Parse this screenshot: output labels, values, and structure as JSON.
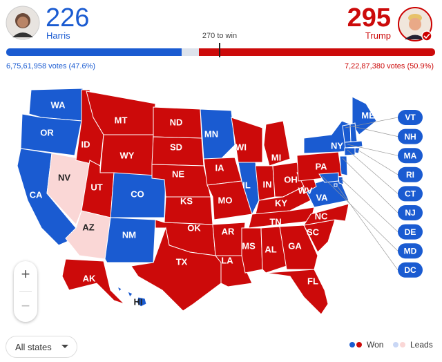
{
  "candidates": [
    {
      "name": "Harris",
      "electoral_votes": 226,
      "votes": "6,75,61,958 votes (47.6%)"
    },
    {
      "name": "Trump",
      "electoral_votes": 295,
      "votes": "7,22,87,380 votes (50.9%)"
    }
  ],
  "threshold": "270 to win",
  "states": [
    {
      "label": "WA",
      "party": "Harris",
      "status": "Won"
    },
    {
      "label": "OR",
      "party": "Harris",
      "status": "Won"
    },
    {
      "label": "CA",
      "party": "Harris",
      "status": "Won"
    },
    {
      "label": "NV",
      "party": "Trump",
      "status": "Leads"
    },
    {
      "label": "ID",
      "party": "Trump",
      "status": "Won"
    },
    {
      "label": "MT",
      "party": "Trump",
      "status": "Won"
    },
    {
      "label": "WY",
      "party": "Trump",
      "status": "Won"
    },
    {
      "label": "UT",
      "party": "Trump",
      "status": "Won"
    },
    {
      "label": "AZ",
      "party": "Trump",
      "status": "Leads"
    },
    {
      "label": "CO",
      "party": "Harris",
      "status": "Won"
    },
    {
      "label": "NM",
      "party": "Harris",
      "status": "Won"
    },
    {
      "label": "ND",
      "party": "Trump",
      "status": "Won"
    },
    {
      "label": "SD",
      "party": "Trump",
      "status": "Won"
    },
    {
      "label": "NE",
      "party": "Trump",
      "status": "Won"
    },
    {
      "label": "KS",
      "party": "Trump",
      "status": "Won"
    },
    {
      "label": "OK",
      "party": "Trump",
      "status": "Won"
    },
    {
      "label": "TX",
      "party": "Trump",
      "status": "Won"
    },
    {
      "label": "MN",
      "party": "Harris",
      "status": "Won"
    },
    {
      "label": "IA",
      "party": "Trump",
      "status": "Won"
    },
    {
      "label": "MO",
      "party": "Trump",
      "status": "Won"
    },
    {
      "label": "AR",
      "party": "Trump",
      "status": "Won"
    },
    {
      "label": "LA",
      "party": "Trump",
      "status": "Won"
    },
    {
      "label": "WI",
      "party": "Trump",
      "status": "Won"
    },
    {
      "label": "IL",
      "party": "Harris",
      "status": "Won"
    },
    {
      "label": "MI",
      "party": "Trump",
      "status": "Won"
    },
    {
      "label": "IN",
      "party": "Trump",
      "status": "Won"
    },
    {
      "label": "OH",
      "party": "Trump",
      "status": "Won"
    },
    {
      "label": "KY",
      "party": "Trump",
      "status": "Won"
    },
    {
      "label": "TN",
      "party": "Trump",
      "status": "Won"
    },
    {
      "label": "MS",
      "party": "Trump",
      "status": "Won"
    },
    {
      "label": "AL",
      "party": "Trump",
      "status": "Won"
    },
    {
      "label": "GA",
      "party": "Trump",
      "status": "Won"
    },
    {
      "label": "FL",
      "party": "Trump",
      "status": "Won"
    },
    {
      "label": "SC",
      "party": "Trump",
      "status": "Won"
    },
    {
      "label": "NC",
      "party": "Trump",
      "status": "Won"
    },
    {
      "label": "VA",
      "party": "Harris",
      "status": "Won"
    },
    {
      "label": "WV",
      "party": "Trump",
      "status": "Won"
    },
    {
      "label": "PA",
      "party": "Trump",
      "status": "Won"
    },
    {
      "label": "NY",
      "party": "Harris",
      "status": "Won"
    },
    {
      "label": "ME",
      "party": "Harris",
      "status": "Won"
    },
    {
      "label": "AK",
      "party": "Trump",
      "status": "Won"
    },
    {
      "label": "HI",
      "party": "Harris",
      "status": "Won"
    },
    {
      "label": "VT",
      "party": "Harris",
      "status": "Won"
    },
    {
      "label": "NH",
      "party": "Harris",
      "status": "Won"
    },
    {
      "label": "MA",
      "party": "Harris",
      "status": "Won"
    },
    {
      "label": "RI",
      "party": "Harris",
      "status": "Won"
    },
    {
      "label": "CT",
      "party": "Harris",
      "status": "Won"
    },
    {
      "label": "NJ",
      "party": "Harris",
      "status": "Won"
    },
    {
      "label": "DE",
      "party": "Harris",
      "status": "Won"
    },
    {
      "label": "MD",
      "party": "Harris",
      "status": "Won"
    },
    {
      "label": "DC",
      "party": "Harris",
      "status": "Won"
    }
  ],
  "zoom": {
    "in": "+",
    "out": "−"
  },
  "filter": "All states",
  "legend": {
    "won": "Won",
    "leads": "Leads"
  }
}
